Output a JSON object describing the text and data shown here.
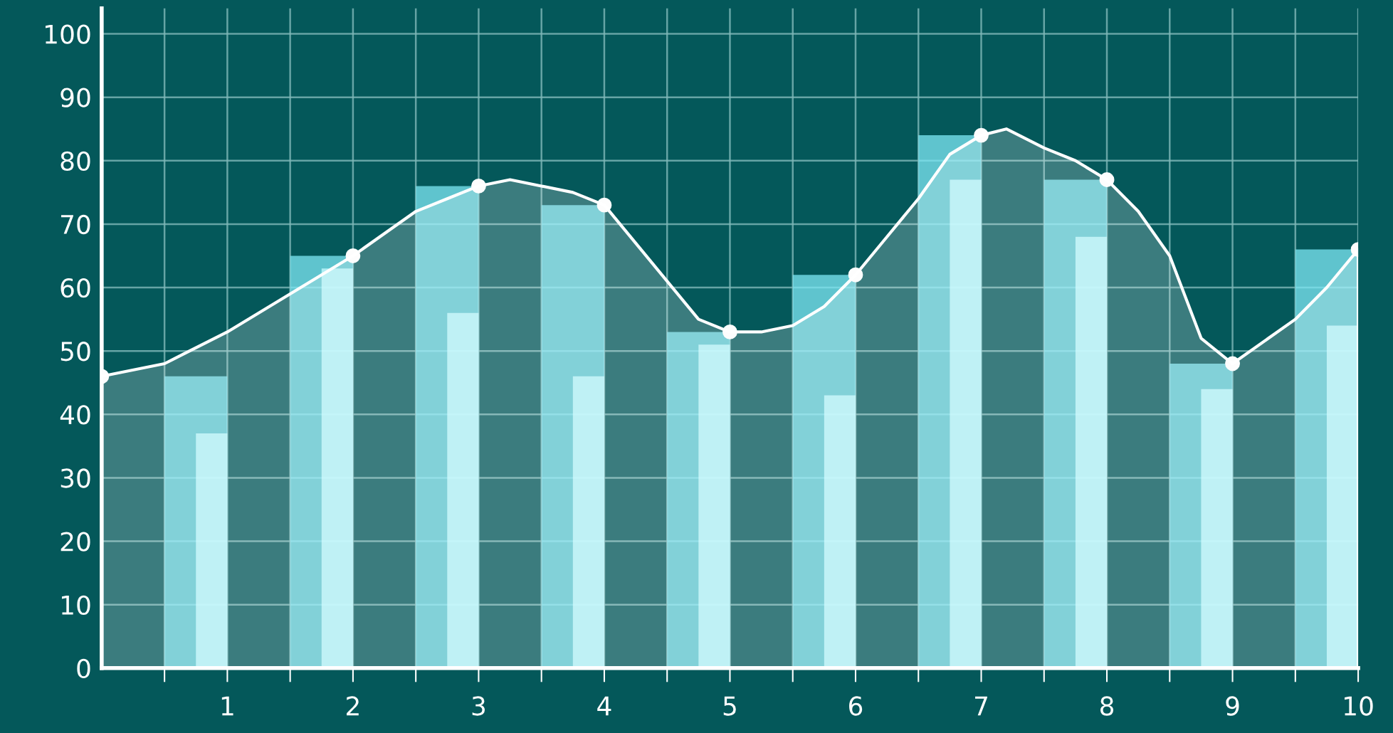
{
  "chart_data": {
    "type": "bar",
    "xlim": [
      0,
      10
    ],
    "ylim": [
      0,
      104
    ],
    "xticks": [
      {
        "value": 0.5,
        "label": null
      },
      1,
      {
        "value": 1.5,
        "label": null
      },
      2,
      {
        "value": 2.5,
        "label": null
      },
      3,
      {
        "value": 3.5,
        "label": null
      },
      4,
      {
        "value": 4.5,
        "label": null
      },
      5,
      {
        "value": 5.5,
        "label": null
      },
      6,
      {
        "value": 6.5,
        "label": null
      },
      7,
      {
        "value": 7.5,
        "label": null
      },
      8,
      {
        "value": 8.5,
        "label": null
      },
      9,
      {
        "value": 9.5,
        "label": null
      },
      10
    ],
    "yticks": [
      0,
      10,
      20,
      30,
      40,
      50,
      60,
      70,
      80,
      90,
      100
    ],
    "grid": true,
    "legend": false,
    "series": [
      {
        "color": "#7ee8f5",
        "x": [
          1,
          2,
          3,
          4,
          5,
          6,
          7,
          8,
          9,
          10
        ],
        "values": [
          46,
          65,
          76,
          73,
          53,
          62,
          84,
          77,
          48,
          66
        ]
      },
      {
        "type": "bar",
        "color": "#c8fbff",
        "x": [
          1,
          2,
          3,
          4,
          5,
          6,
          7,
          8,
          9,
          10
        ],
        "values": [
          37,
          63,
          56,
          46,
          51,
          43,
          77,
          68,
          44,
          54
        ]
      },
      {
        "type": "area",
        "color": "#ffffff",
        "x": [
          0,
          0.5,
          1,
          1.25,
          1.5,
          2,
          2.5,
          2.75,
          3,
          3.25,
          3.5,
          3.75,
          4,
          4.25,
          4.5,
          4.75,
          5,
          5.25,
          5.5,
          5.75,
          6,
          6.25,
          6.5,
          6.75,
          7,
          7.2,
          7.5,
          7.75,
          8,
          8.25,
          8.5,
          8.75,
          9,
          9.5,
          9.75,
          10
        ],
        "values": [
          46,
          48,
          53,
          56,
          59,
          65,
          72,
          74,
          76,
          77,
          76,
          75,
          73,
          67,
          61,
          55,
          53,
          53,
          54,
          57,
          62,
          68,
          74,
          81,
          84,
          85,
          82,
          80,
          77,
          72,
          65,
          52,
          48,
          55,
          60,
          66
        ]
      },
      {
        "type": "scatter",
        "color": "#fdfdfd",
        "marker": "circle",
        "x": [
          0,
          2,
          3,
          4,
          5,
          6,
          7,
          8,
          9,
          10
        ],
        "values": [
          46,
          65,
          76,
          73,
          53,
          62,
          84,
          77,
          48,
          66
        ]
      }
    ]
  }
}
